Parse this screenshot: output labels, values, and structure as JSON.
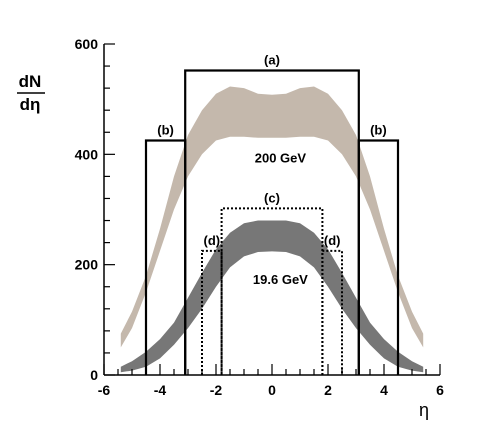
{
  "chart_data": {
    "type": "area",
    "x_axis": {
      "label": "η",
      "range": [
        -6,
        6
      ],
      "ticks": [
        -6,
        -4,
        -2,
        0,
        2,
        4,
        6
      ]
    },
    "y_axis": {
      "label_numerator": "dN",
      "label_denominator": "dη",
      "range": [
        0,
        600
      ],
      "ticks": [
        0,
        200,
        400,
        600
      ]
    },
    "series": [
      {
        "name": "200 GeV",
        "color": "#c4b8ac",
        "x": [
          -5.4,
          -5.0,
          -4.5,
          -4.0,
          -3.5,
          -3.0,
          -2.5,
          -2.0,
          -1.5,
          -1.0,
          -0.5,
          0.0,
          0.5,
          1.0,
          1.5,
          2.0,
          2.5,
          3.0,
          3.5,
          4.0,
          4.5,
          5.0,
          5.4
        ],
        "lower": [
          50,
          85,
          150,
          225,
          300,
          360,
          400,
          425,
          432,
          432,
          430,
          430,
          430,
          432,
          432,
          425,
          400,
          360,
          300,
          225,
          150,
          85,
          50
        ],
        "upper": [
          75,
          115,
          180,
          265,
          360,
          435,
          480,
          510,
          523,
          520,
          510,
          508,
          510,
          520,
          523,
          510,
          480,
          435,
          360,
          265,
          180,
          115,
          75
        ]
      },
      {
        "name": "19.6 GeV",
        "color": "#777777",
        "x": [
          -5.4,
          -5.0,
          -4.5,
          -4.0,
          -3.5,
          -3.0,
          -2.5,
          -2.0,
          -1.5,
          -1.0,
          -0.5,
          0.0,
          0.5,
          1.0,
          1.5,
          2.0,
          2.5,
          3.0,
          3.5,
          4.0,
          4.5,
          5.0,
          5.4
        ],
        "lower": [
          5,
          8,
          15,
          30,
          55,
          85,
          120,
          160,
          195,
          215,
          223,
          224,
          223,
          215,
          195,
          160,
          120,
          85,
          55,
          30,
          15,
          8,
          5
        ],
        "upper": [
          15,
          25,
          42,
          65,
          95,
          140,
          185,
          228,
          258,
          275,
          280,
          280,
          280,
          275,
          258,
          228,
          185,
          140,
          95,
          65,
          42,
          25,
          15
        ]
      }
    ],
    "regions": [
      {
        "label": "(a)",
        "x": [
          -3.1,
          3.1
        ],
        "height": 552,
        "style": "solid"
      },
      {
        "label": "(b)",
        "x": [
          -4.5,
          -3.1
        ],
        "height": 425,
        "style": "solid"
      },
      {
        "label": "(b)",
        "x": [
          3.1,
          4.5
        ],
        "height": 425,
        "style": "solid"
      },
      {
        "label": "(c)",
        "x": [
          -1.8,
          1.8
        ],
        "height": 302,
        "style": "dotted"
      },
      {
        "label": "(d)",
        "x": [
          -2.5,
          -1.8
        ],
        "height": 225,
        "style": "dotted"
      },
      {
        "label": "(d)",
        "x": [
          1.8,
          2.5
        ],
        "height": 225,
        "style": "dotted"
      }
    ],
    "annotations": [
      {
        "text": "200 GeV",
        "x": 0.3,
        "y": 385
      },
      {
        "text": "19.6 GeV",
        "x": 0.3,
        "y": 165
      }
    ],
    "grid": false,
    "legend": "none"
  }
}
